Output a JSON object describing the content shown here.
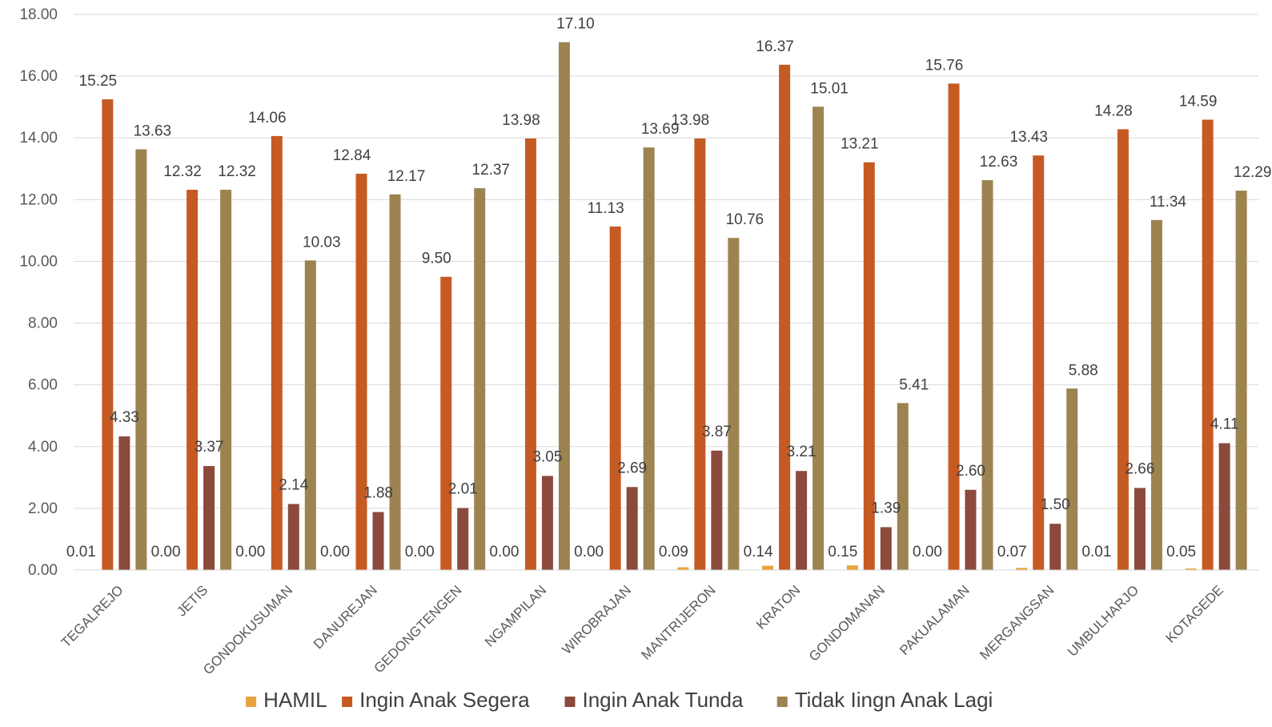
{
  "chart_data": {
    "type": "bar",
    "title": "",
    "xlabel": "",
    "ylabel": "",
    "ylim": [
      0,
      18
    ],
    "yticks": [
      "0.00",
      "2.00",
      "4.00",
      "6.00",
      "8.00",
      "10.00",
      "12.00",
      "14.00",
      "16.00",
      "18.00"
    ],
    "grid": true,
    "legend_position": "bottom",
    "categories": [
      "TEGALREJO",
      "JETIS",
      "GONDOKUSUMAN",
      "DANUREJAN",
      "GEDONGTENGEN",
      "NGAMPILAN",
      "WIROBRAJAN",
      "MANTRIJERON",
      "KRATON",
      "GONDOMANAN",
      "PAKUALAMAN",
      "MERGANGSAN",
      "UMBULHARJO",
      "KOTAGEDE"
    ],
    "series": [
      {
        "name": "HAMIL",
        "color": "#E8A33D",
        "values": [
          0.01,
          0.0,
          0.0,
          0.0,
          0.0,
          0.0,
          0.0,
          0.09,
          0.14,
          0.15,
          0.0,
          0.07,
          0.01,
          0.05
        ],
        "labels": [
          "0.01",
          "0.00",
          "0.00",
          "0.00",
          "0.00",
          "0.00",
          "0.00",
          "0.09",
          "0.14",
          "0.15",
          "0.00",
          "0.07",
          "0.01",
          "0.05"
        ]
      },
      {
        "name": "Ingin Anak Segera",
        "color": "#C55A23",
        "values": [
          15.25,
          12.32,
          14.06,
          12.84,
          9.5,
          13.98,
          11.13,
          13.98,
          16.37,
          13.21,
          15.76,
          13.43,
          14.28,
          14.59
        ],
        "labels": [
          "15.25",
          "12.32",
          "14.06",
          "12.84",
          "9.50",
          "13.98",
          "11.13",
          "13.98",
          "16.37",
          "13.21",
          "15.76",
          "13.43",
          "14.28",
          "14.59"
        ]
      },
      {
        "name": "Ingin Anak Tunda",
        "color": "#8B4A3C",
        "values": [
          4.33,
          3.37,
          2.14,
          1.88,
          2.01,
          3.05,
          2.69,
          3.87,
          3.21,
          1.39,
          2.6,
          1.5,
          2.66,
          4.11
        ],
        "labels": [
          "4.33",
          "3.37",
          "2.14",
          "1.88",
          "2.01",
          "3.05",
          "2.69",
          "3.87",
          "3.21",
          "1.39",
          "2.60",
          "1.50",
          "2.66",
          "4.11"
        ]
      },
      {
        "name": "Tidak Iingn Anak Lagi",
        "color": "#9C8350",
        "values": [
          13.63,
          12.32,
          10.03,
          12.17,
          12.37,
          17.1,
          13.69,
          10.76,
          15.01,
          5.41,
          12.63,
          5.88,
          11.34,
          12.29
        ],
        "labels": [
          "13.63",
          "12.32",
          "10.03",
          "12.17",
          "12.37",
          "17.10",
          "13.69",
          "10.76",
          "15.01",
          "5.41",
          "12.63",
          "5.88",
          "11.34",
          "12.29"
        ]
      }
    ]
  }
}
